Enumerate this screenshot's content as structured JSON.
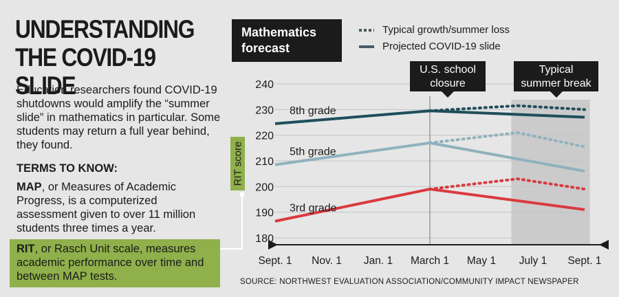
{
  "headline": {
    "line1": "UNDERSTANDING",
    "line2": "THE COVID-19 SLIDE"
  },
  "intro": "Education researchers found COVID-19 shutdowns would amplify the “summer slide” in mathematics in particular. Some students may return a full year behind, they found.",
  "terms_heading": "TERMS TO KNOW:",
  "map_term": "MAP",
  "map_definition": ", or Measures of Academic Progress, is a computerized assessment given to over 11 million students three times a year.",
  "rit_term": "RIT",
  "rit_definition": ", or Rasch Unit scale, measures academic performance over time and between MAP tests.",
  "chart_title_box": "Mathematics forecast",
  "legend": {
    "dotted": "Typical growth/summer loss",
    "solid": "Projected COVID-19 slide"
  },
  "callouts": {
    "closure": "U.S. school closure",
    "summer": "Typical summer break"
  },
  "y_axis_label": "RIT score",
  "source": "SOURCE: NORTHWEST EVALUATION ASSOCIATION/COMMUNITY IMPACT NEWSPAPER",
  "colors": {
    "grade8": "#1f4e5a",
    "grade5": "#8fb2bd",
    "grade3": "#d93a3f",
    "accent": "#8fb04a",
    "shade": "#cbcbcb"
  },
  "chart_data": {
    "type": "line",
    "title": "Mathematics forecast",
    "ylabel": "RIT score",
    "categories": [
      "Sept. 1",
      "Nov. 1",
      "Jan. 1",
      "March 1",
      "May 1",
      "July 1",
      "Sept. 1"
    ],
    "ylim": [
      180,
      240
    ],
    "yticks": [
      180,
      190,
      200,
      210,
      220,
      230,
      240
    ],
    "series": [
      {
        "name": "8th grade",
        "color_key": "grade8",
        "solid": [
          [
            0,
            224.5
          ],
          [
            3,
            229.5
          ],
          [
            6,
            227
          ]
        ],
        "dotted": [
          [
            3,
            229.5
          ],
          [
            4.7,
            231.5
          ],
          [
            6,
            230
          ]
        ]
      },
      {
        "name": "5th grade",
        "color_key": "grade5",
        "solid": [
          [
            0,
            208.5
          ],
          [
            3,
            217
          ],
          [
            6,
            206
          ]
        ],
        "dotted": [
          [
            3,
            217
          ],
          [
            4.7,
            221
          ],
          [
            6,
            215.5
          ]
        ]
      },
      {
        "name": "3rd grade",
        "color_key": "grade3",
        "solid": [
          [
            0,
            186.5
          ],
          [
            3,
            199
          ],
          [
            6,
            191
          ]
        ],
        "dotted": [
          [
            3,
            199
          ],
          [
            4.7,
            203
          ],
          [
            6,
            199
          ]
        ]
      }
    ],
    "events": [
      {
        "label": "U.S. school closure",
        "x": 3
      },
      {
        "label": "Typical summer break",
        "x_range": [
          4.5,
          6.1
        ]
      }
    ],
    "grid": true
  }
}
